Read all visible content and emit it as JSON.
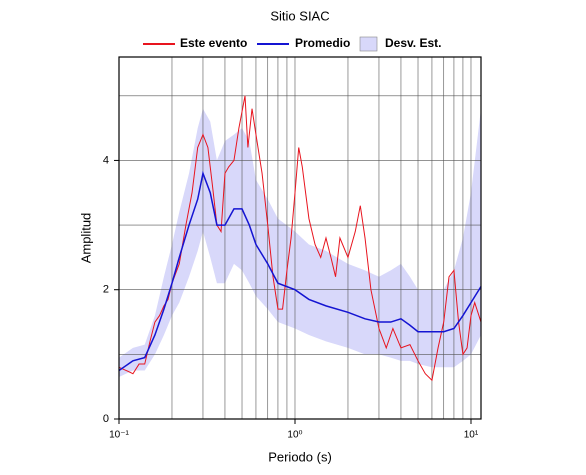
{
  "chart_data": {
    "type": "line",
    "title": "Sitio SIAC",
    "xlabel": "Periodo (s)",
    "ylabel": "Amplitud",
    "xlog": true,
    "xlim": [
      0.1,
      11.4
    ],
    "ylim": [
      0,
      5.6
    ],
    "xticks": [
      {
        "value": 0.1,
        "label": "10⁻¹"
      },
      {
        "value": 1,
        "label": "10⁰"
      },
      {
        "value": 10,
        "label": "10¹"
      }
    ],
    "xgrid": [
      0.2,
      0.3,
      0.4,
      0.5,
      0.6,
      0.7,
      0.8,
      0.9,
      1,
      2,
      3,
      4,
      5,
      6,
      7,
      8,
      9,
      10
    ],
    "yticks": [
      0,
      2,
      4
    ],
    "ygrid": [
      1,
      2,
      3,
      4,
      5
    ],
    "series": [
      {
        "name": "Este evento",
        "color": "#e8141e",
        "x": [
          0.1,
          0.11,
          0.12,
          0.13,
          0.14,
          0.15,
          0.16,
          0.17,
          0.18,
          0.19,
          0.2,
          0.22,
          0.24,
          0.26,
          0.28,
          0.3,
          0.32,
          0.34,
          0.36,
          0.38,
          0.4,
          0.42,
          0.45,
          0.48,
          0.52,
          0.54,
          0.57,
          0.6,
          0.65,
          0.7,
          0.75,
          0.8,
          0.85,
          0.9,
          0.95,
          1.0,
          1.05,
          1.1,
          1.2,
          1.3,
          1.4,
          1.5,
          1.6,
          1.7,
          1.8,
          2.0,
          2.2,
          2.35,
          2.5,
          2.7,
          3.0,
          3.3,
          3.6,
          4.0,
          4.5,
          5.0,
          5.5,
          6.0,
          6.5,
          7.0,
          7.5,
          8.0,
          8.5,
          9.0,
          9.5,
          10,
          10.5,
          11.4
        ],
        "values": [
          0.8,
          0.75,
          0.7,
          0.85,
          0.85,
          1.2,
          1.5,
          1.6,
          1.75,
          1.85,
          2.1,
          2.4,
          3.0,
          3.5,
          4.2,
          4.4,
          4.2,
          3.6,
          3.0,
          2.9,
          3.8,
          3.9,
          4.0,
          4.5,
          5.0,
          4.2,
          4.8,
          4.4,
          3.8,
          3.0,
          2.2,
          1.7,
          1.7,
          2.3,
          2.8,
          3.5,
          4.2,
          3.9,
          3.1,
          2.7,
          2.5,
          2.8,
          2.5,
          2.2,
          2.8,
          2.5,
          2.9,
          3.3,
          2.8,
          2.0,
          1.4,
          1.1,
          1.4,
          1.1,
          1.15,
          0.9,
          0.7,
          0.6,
          1.1,
          1.5,
          2.2,
          2.3,
          1.5,
          1.0,
          1.1,
          1.6,
          1.8,
          1.5
        ]
      },
      {
        "name": "Promedio",
        "color": "#1414d2",
        "x": [
          0.1,
          0.12,
          0.14,
          0.16,
          0.18,
          0.2,
          0.22,
          0.25,
          0.28,
          0.3,
          0.33,
          0.36,
          0.4,
          0.45,
          0.5,
          0.55,
          0.6,
          0.7,
          0.8,
          1.0,
          1.2,
          1.5,
          2,
          2.5,
          3,
          3.5,
          4,
          4.5,
          5,
          6,
          7,
          8,
          9,
          10,
          11.4
        ],
        "values": [
          0.75,
          0.9,
          0.95,
          1.3,
          1.7,
          2.1,
          2.5,
          3.0,
          3.4,
          3.8,
          3.5,
          3.0,
          3.0,
          3.25,
          3.25,
          3.0,
          2.7,
          2.4,
          2.1,
          2.0,
          1.85,
          1.75,
          1.65,
          1.55,
          1.5,
          1.5,
          1.55,
          1.45,
          1.35,
          1.35,
          1.35,
          1.4,
          1.6,
          1.8,
          2.05
        ]
      }
    ],
    "band": {
      "name": "Desv. Est.",
      "color": "#d8d8fa",
      "x": [
        0.1,
        0.12,
        0.14,
        0.16,
        0.18,
        0.2,
        0.22,
        0.25,
        0.28,
        0.3,
        0.33,
        0.36,
        0.4,
        0.45,
        0.5,
        0.55,
        0.6,
        0.7,
        0.8,
        1.0,
        1.2,
        1.5,
        2,
        2.5,
        3,
        3.5,
        4,
        4.5,
        5,
        6,
        7,
        8,
        9,
        10,
        11.4
      ],
      "lower": [
        0.65,
        0.75,
        0.75,
        1.0,
        1.3,
        1.6,
        1.8,
        2.2,
        2.6,
        2.9,
        2.5,
        2.1,
        2.1,
        2.4,
        2.3,
        2.1,
        1.9,
        1.7,
        1.5,
        1.4,
        1.3,
        1.2,
        1.1,
        1.0,
        1.0,
        0.95,
        0.9,
        0.9,
        0.85,
        0.8,
        0.8,
        0.8,
        0.9,
        1.0,
        1.3
      ],
      "upper": [
        0.95,
        1.1,
        1.15,
        1.6,
        2.2,
        2.7,
        3.2,
        3.8,
        4.5,
        4.8,
        4.6,
        4.0,
        4.3,
        4.4,
        4.5,
        4.3,
        3.7,
        3.4,
        3.1,
        2.9,
        2.7,
        2.6,
        2.4,
        2.3,
        2.2,
        2.3,
        2.4,
        2.2,
        2.0,
        2.0,
        2.0,
        2.3,
        2.8,
        3.5,
        4.8
      ]
    }
  }
}
